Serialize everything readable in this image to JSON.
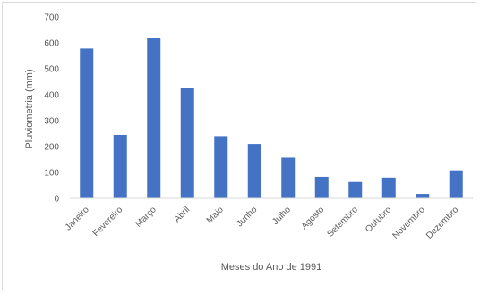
{
  "chart_data": {
    "type": "bar",
    "categories": [
      "Janeiro",
      "Fevereiro",
      "Março",
      "Abril",
      "Maio",
      "Junho",
      "Julho",
      "Agosto",
      "Setembro",
      "Outubro",
      "Novembro",
      "Dezembro"
    ],
    "values": [
      578,
      245,
      618,
      425,
      240,
      210,
      157,
      83,
      63,
      80,
      17,
      108
    ],
    "title": "",
    "xlabel": "Meses do Ano de 1991",
    "ylabel": "Pluviometria (mm)",
    "ylim": [
      0,
      700
    ],
    "yticks": [
      0,
      100,
      200,
      300,
      400,
      500,
      600,
      700
    ],
    "grid": false,
    "legend": "none",
    "colors": {
      "bar": "#4472c4",
      "axis": "#d9d9d9",
      "text": "#595959"
    }
  }
}
